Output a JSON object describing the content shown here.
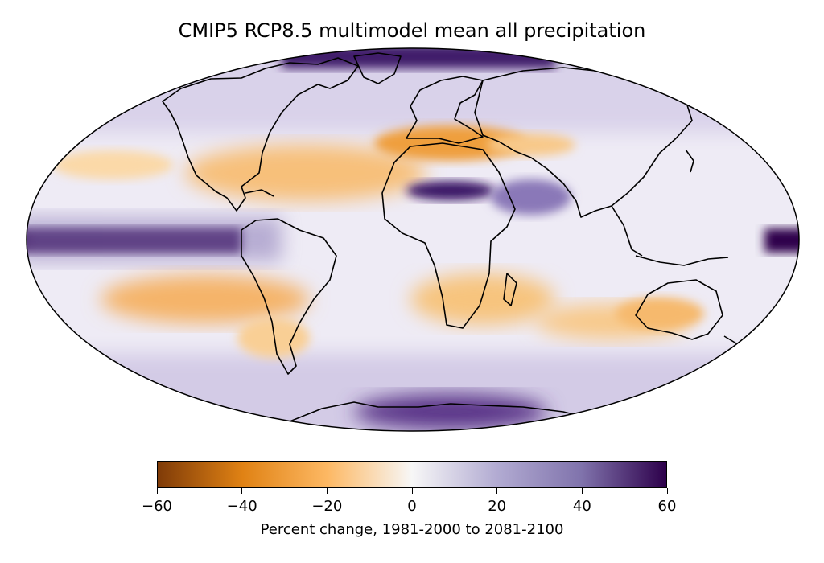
{
  "title": "CMIP5 RCP8.5 multimodel mean all precipitation",
  "colorbar": {
    "label": "Percent change, 1981-2000 to 2081-2100",
    "ticks": [
      "−60",
      "−40",
      "−20",
      "0",
      "20",
      "40",
      "60"
    ],
    "range": [
      -60,
      60
    ],
    "colormap": "PuOr",
    "stops": [
      "#7f3b08",
      "#e08214",
      "#fdb863",
      "#f7f7f7",
      "#b2abd2",
      "#8073ac",
      "#2d004b"
    ]
  },
  "map": {
    "projection": "Mollweide",
    "coastline_color": "#000000",
    "ocean_background": "#f4f2f8"
  }
}
